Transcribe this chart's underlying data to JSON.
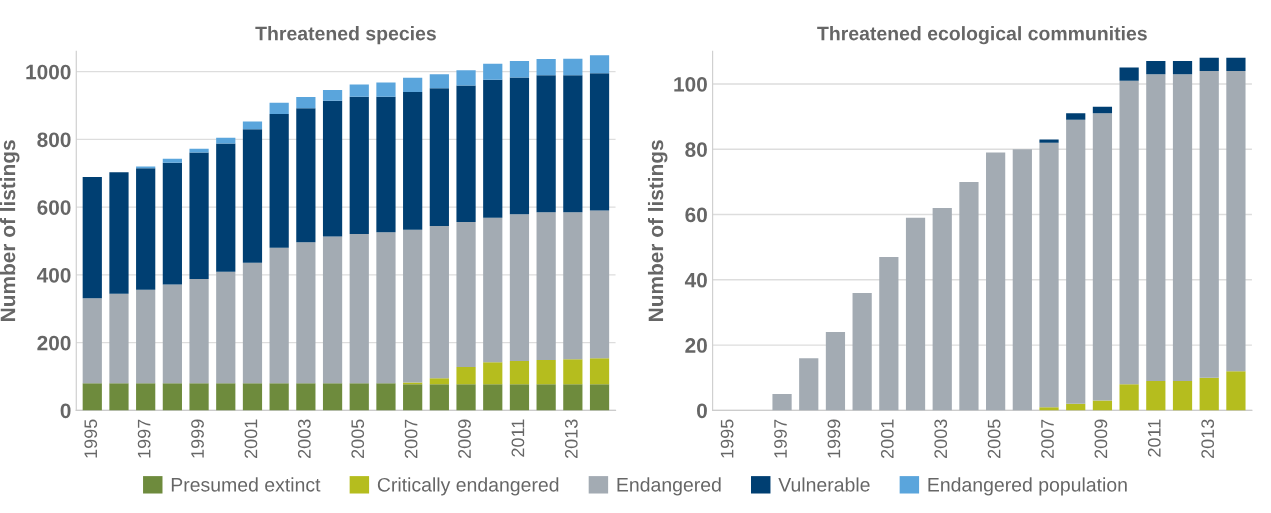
{
  "chart_data": [
    {
      "type": "bar",
      "title": "Threatened species",
      "ylabel": "Number of listings",
      "stacked": true,
      "grid": "y",
      "legend": "bottom",
      "categories": [
        "1995",
        null,
        "1997",
        null,
        "1999",
        null,
        "2001",
        null,
        "2003",
        null,
        "2005",
        null,
        "2007",
        null,
        "2009",
        null,
        "2011",
        null,
        "2013",
        null
      ],
      "ylim": [
        0,
        1060
      ],
      "yticks": [
        0,
        200,
        400,
        600,
        800,
        1000
      ],
      "series": [
        {
          "name": "Presumed extinct",
          "color": "#6e8b3d",
          "values": [
            80,
            80,
            80,
            80,
            80,
            80,
            80,
            80,
            80,
            80,
            80,
            80,
            77,
            77,
            77,
            77,
            77,
            77,
            77,
            77
          ]
        },
        {
          "name": "Critically endangered",
          "color": "#b5bd1e",
          "values": [
            0,
            0,
            0,
            0,
            0,
            0,
            0,
            0,
            0,
            0,
            0,
            0,
            5,
            18,
            51,
            65,
            69,
            72,
            74,
            77
          ]
        },
        {
          "name": "Endangered",
          "color": "#a3abb3",
          "values": [
            251,
            264,
            276,
            292,
            308,
            329,
            356,
            400,
            416,
            433,
            441,
            446,
            451,
            449,
            428,
            427,
            433,
            436,
            434,
            436
          ]
        },
        {
          "name": "Vulnerable",
          "color": "#003f72",
          "values": [
            358,
            359,
            359,
            359,
            373,
            379,
            394,
            395,
            396,
            401,
            405,
            400,
            407,
            407,
            403,
            407,
            404,
            404,
            404,
            405
          ]
        },
        {
          "name": "Endangered population",
          "color": "#5aa5dc",
          "values": [
            0,
            null,
            5,
            12,
            11,
            17,
            23,
            33,
            33,
            32,
            36,
            42,
            42,
            41,
            45,
            47,
            48,
            48,
            49,
            53
          ]
        }
      ]
    },
    {
      "type": "bar",
      "title": "Threatened ecological communities",
      "ylabel": "Number of listings",
      "stacked": true,
      "grid": "y",
      "categories": [
        "1995",
        null,
        "1997",
        null,
        "1999",
        null,
        "2001",
        null,
        "2003",
        null,
        "2005",
        null,
        "2007",
        null,
        "2009",
        null,
        "2011",
        null,
        "2013",
        null
      ],
      "ylim": [
        0,
        110
      ],
      "yticks": [
        0,
        20,
        40,
        60,
        80,
        100
      ],
      "series": [
        {
          "name": "Critically endangered",
          "color": "#b5bd1e",
          "values": [
            0,
            0,
            0,
            0,
            0,
            0,
            0,
            0,
            0,
            0,
            0,
            0,
            1,
            2,
            3,
            8,
            9,
            9,
            10,
            12
          ]
        },
        {
          "name": "Endangered",
          "color": "#a3abb3",
          "values": [
            0,
            0,
            5,
            16,
            24,
            36,
            47,
            59,
            62,
            70,
            79,
            80,
            81,
            87,
            88,
            93,
            94,
            94,
            94,
            92
          ]
        },
        {
          "name": "Vulnerable",
          "color": "#003f72",
          "values": [
            0,
            0,
            0,
            0,
            0,
            0,
            0,
            0,
            0,
            0,
            0,
            0,
            1,
            2,
            2,
            4,
            4,
            4,
            4,
            4
          ]
        }
      ]
    }
  ]
}
